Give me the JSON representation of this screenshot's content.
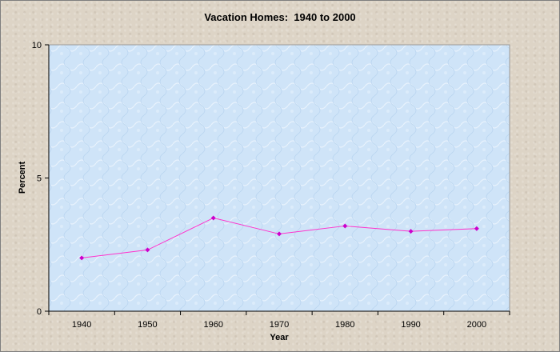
{
  "chart_data": {
    "type": "line",
    "title": "Vacation Homes:  1940 to 2000",
    "xlabel": "Year",
    "ylabel": "Percent",
    "categories": [
      "1940",
      "1950",
      "1960",
      "1970",
      "1980",
      "1990",
      "2000"
    ],
    "series": [
      {
        "values": [
          2.0,
          2.3,
          3.5,
          2.9,
          3.2,
          3.0,
          3.1
        ]
      }
    ],
    "ylim": [
      0,
      10
    ],
    "yticks": [
      "0",
      "5",
      "10"
    ],
    "grid": false,
    "legend": "none",
    "colors": {
      "line": "#ff33cc",
      "marker": "#cc00cc",
      "plot_background": "#cfe4f8",
      "frame_background": "#ddd4c6"
    }
  }
}
